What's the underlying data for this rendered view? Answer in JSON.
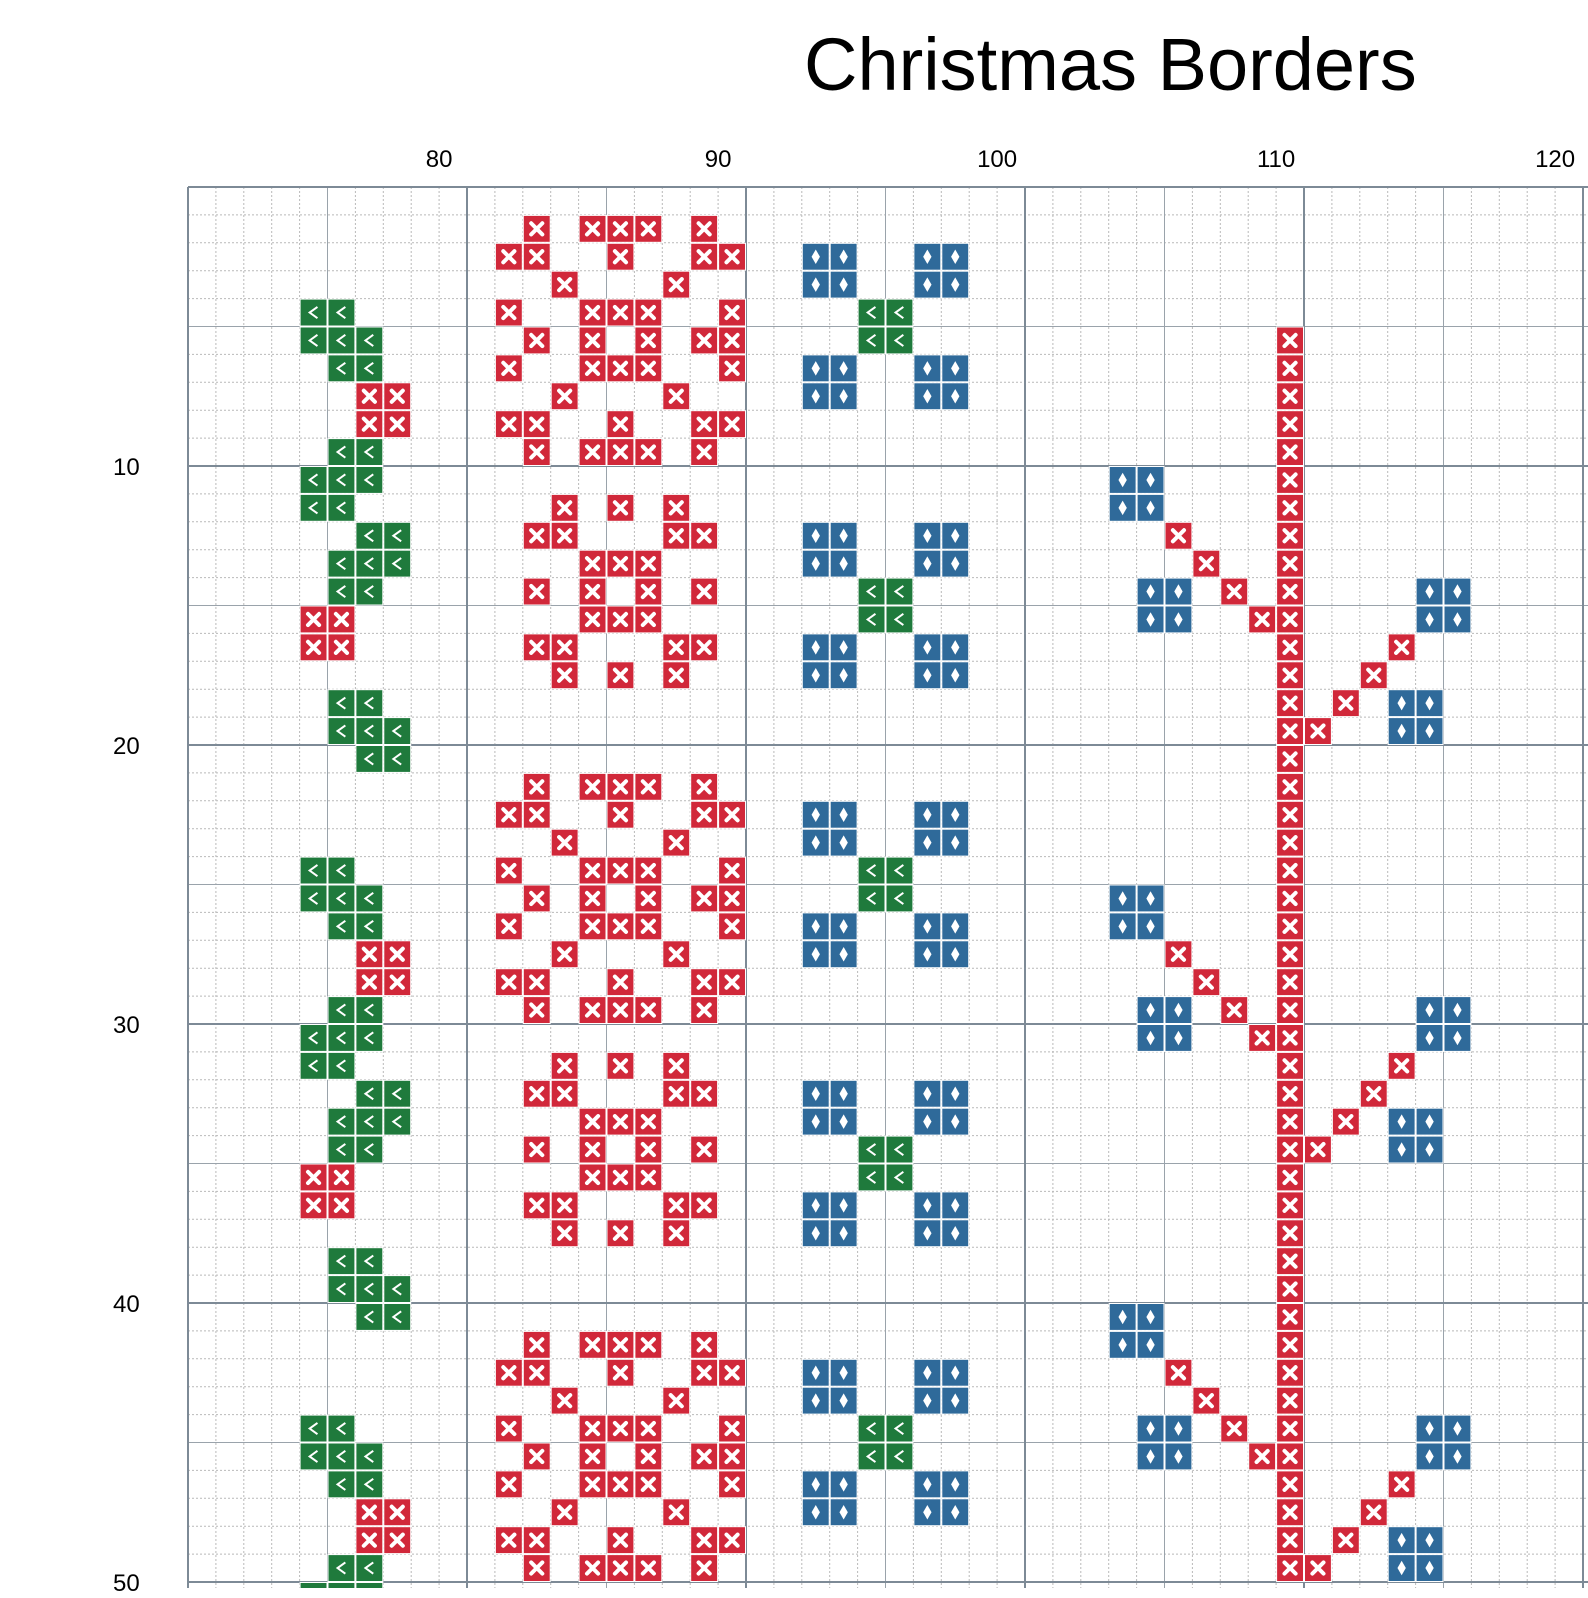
{
  "title": "Christmas Borders",
  "column_numbers": [
    "80",
    "90",
    "100",
    "110",
    "120"
  ],
  "row_numbers": [
    "10",
    "20",
    "30",
    "40",
    "50"
  ],
  "colors": {
    "red": "#d1283a",
    "green": "#1f7a3c",
    "blue": "#2f6a9a",
    "fine_grid": "#b9b9b9",
    "major_grid": "#7d8a96"
  },
  "symbols": {
    "red": "cross",
    "green": "chevron-left",
    "blue": "diamond"
  }
}
